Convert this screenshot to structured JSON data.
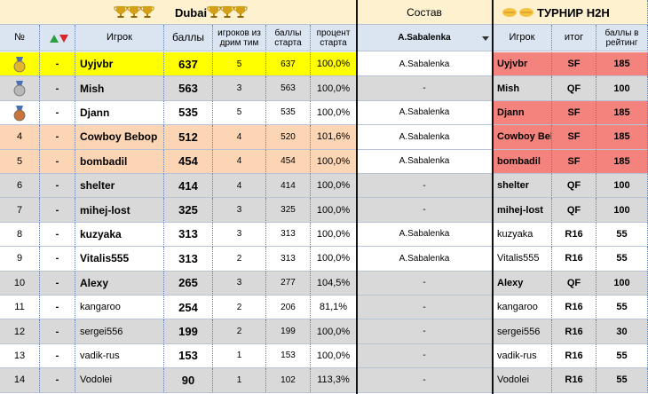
{
  "header": {
    "group_title": "Dubai",
    "columns": [
      "№",
      "Игрок",
      "баллы",
      "игроков из дрим тим",
      "баллы старта",
      "процент старта"
    ],
    "sostav_title": "Состав",
    "sostav_filter": "A.Sabalenka",
    "h2h_title": "ТУРНИР H2H",
    "h2h_columns": [
      "Игрок",
      "итог",
      "баллы в рейтинг"
    ]
  },
  "rows": [
    [
      null,
      "-",
      "Uyjvbr",
      637,
      5,
      637,
      "100,0%",
      "A.Sabalenka",
      "Uyjvbr",
      "SF",
      185
    ],
    [
      null,
      "-",
      "Mish",
      563,
      3,
      563,
      "100,0%",
      "-",
      "Mish",
      "QF",
      100
    ],
    [
      null,
      "-",
      "Djann",
      535,
      5,
      535,
      "100,0%",
      "A.Sabalenka",
      "Djann",
      "SF",
      185
    ],
    [
      4,
      "-",
      "Cowboy Bebop",
      512,
      4,
      520,
      "101,6%",
      "A.Sabalenka",
      "Cowboy Bebop",
      "SF",
      185
    ],
    [
      5,
      "-",
      "bombadil",
      454,
      4,
      454,
      "100,0%",
      "A.Sabalenka",
      "bombadil",
      "SF",
      185
    ],
    [
      6,
      "-",
      "shelter",
      414,
      4,
      414,
      "100,0%",
      "-",
      "shelter",
      "QF",
      100
    ],
    [
      7,
      "-",
      "mihej-lost",
      325,
      3,
      325,
      "100,0%",
      "-",
      "mihej-lost",
      "QF",
      100
    ],
    [
      8,
      "-",
      "kuzyaka",
      313,
      3,
      313,
      "100,0%",
      "A.Sabalenka",
      "kuzyaka",
      "R16",
      55
    ],
    [
      9,
      "-",
      "Vitalis555",
      313,
      2,
      313,
      "100,0%",
      "A.Sabalenka",
      "Vitalis555",
      "R16",
      55
    ],
    [
      10,
      "-",
      "Alexy",
      265,
      3,
      277,
      "104,5%",
      "-",
      "Alexy",
      "QF",
      100
    ],
    [
      11,
      "-",
      "kangaroo",
      254,
      2,
      206,
      "81,1%",
      "-",
      "kangaroo",
      "R16",
      55
    ],
    [
      12,
      "-",
      "sergei556",
      199,
      2,
      199,
      "100,0%",
      "-",
      "sergei556",
      "R16",
      30
    ],
    [
      13,
      "-",
      "vadik-rus",
      153,
      1,
      153,
      "100,0%",
      "-",
      "vadik-rus",
      "R16",
      55
    ],
    [
      14,
      "-",
      "Vodolei",
      90,
      1,
      102,
      "113,3%",
      "-",
      "Vodolei",
      "R16",
      55
    ]
  ]
}
